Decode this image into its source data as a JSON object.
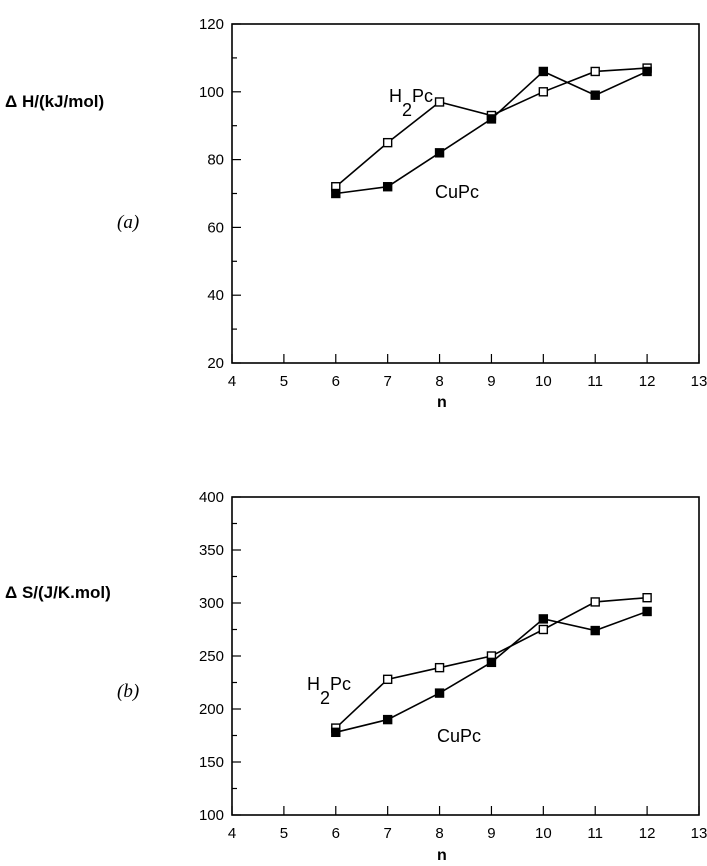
{
  "chart_data": [
    {
      "panel_label": "(a)",
      "type": "line",
      "ylabel": "Δ H/(kJ/mol)",
      "xlabel": "n",
      "xlim": [
        4,
        13
      ],
      "ylim": [
        20,
        120
      ],
      "xticks": [
        4,
        5,
        6,
        7,
        8,
        9,
        10,
        11,
        12,
        13
      ],
      "yticks": [
        20,
        40,
        60,
        80,
        100,
        120
      ],
      "grid": false,
      "series": [
        {
          "name": "H2Pc",
          "label_main": "H",
          "label_sub": "2",
          "label_tail": "Pc",
          "marker": "open-square",
          "x": [
            6,
            7,
            8,
            9,
            10,
            11,
            12
          ],
          "y": [
            72,
            85,
            97,
            93,
            100,
            106,
            107
          ]
        },
        {
          "name": "CuPc",
          "label_main": "CuPc",
          "marker": "filled-square",
          "x": [
            6,
            7,
            8,
            9,
            10,
            11,
            12
          ],
          "y": [
            70,
            72,
            82,
            92,
            106,
            99,
            106
          ]
        }
      ]
    },
    {
      "panel_label": "(b)",
      "type": "line",
      "ylabel": "Δ S/(J/K.mol)",
      "xlabel": "n",
      "xlim": [
        4,
        13
      ],
      "ylim": [
        100,
        400
      ],
      "xticks": [
        4,
        5,
        6,
        7,
        8,
        9,
        10,
        11,
        12,
        13
      ],
      "yticks": [
        100,
        150,
        200,
        250,
        300,
        350,
        400
      ],
      "grid": false,
      "series": [
        {
          "name": "H2Pc",
          "label_main": "H",
          "label_sub": "2",
          "label_tail": "Pc",
          "marker": "open-square",
          "x": [
            6,
            7,
            8,
            9,
            10,
            11,
            12
          ],
          "y": [
            182,
            228,
            239,
            250,
            275,
            301,
            305
          ]
        },
        {
          "name": "CuPc",
          "label_main": "CuPc",
          "marker": "filled-square",
          "x": [
            6,
            7,
            8,
            9,
            10,
            11,
            12
          ],
          "y": [
            178,
            190,
            215,
            244,
            285,
            274,
            292
          ]
        }
      ]
    }
  ]
}
